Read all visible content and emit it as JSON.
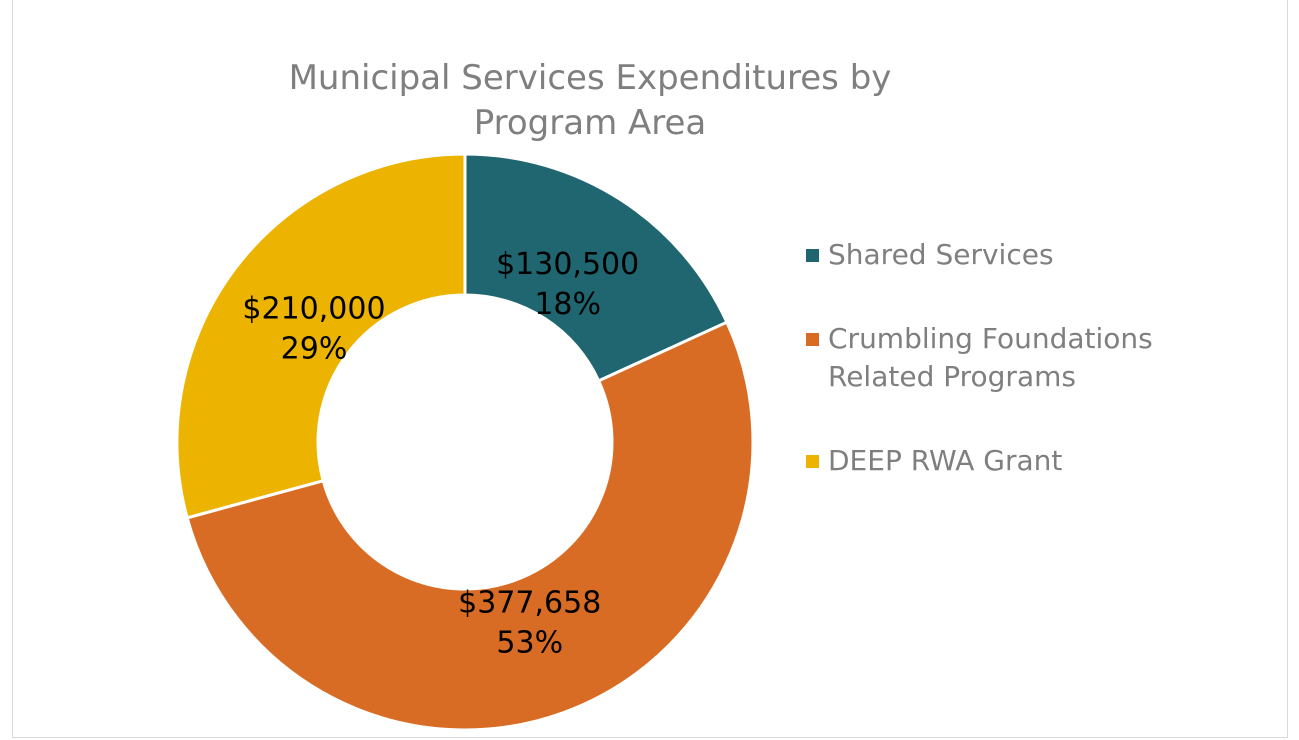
{
  "chart_data": {
    "type": "donut",
    "title": "Municipal Services Expenditures by Program Area",
    "categories": [
      "Shared Services",
      "Crumbling Foundations Related Programs",
      "DEEP RWA Grant"
    ],
    "values": [
      130500,
      377658,
      210000
    ],
    "value_labels": [
      "$130,500",
      "$377,658",
      "$210,000"
    ],
    "percent_labels": [
      "18%",
      "53%",
      "29%"
    ],
    "colors": [
      "#1f6670",
      "#d96c24",
      "#ecb300"
    ],
    "legend": "right"
  }
}
